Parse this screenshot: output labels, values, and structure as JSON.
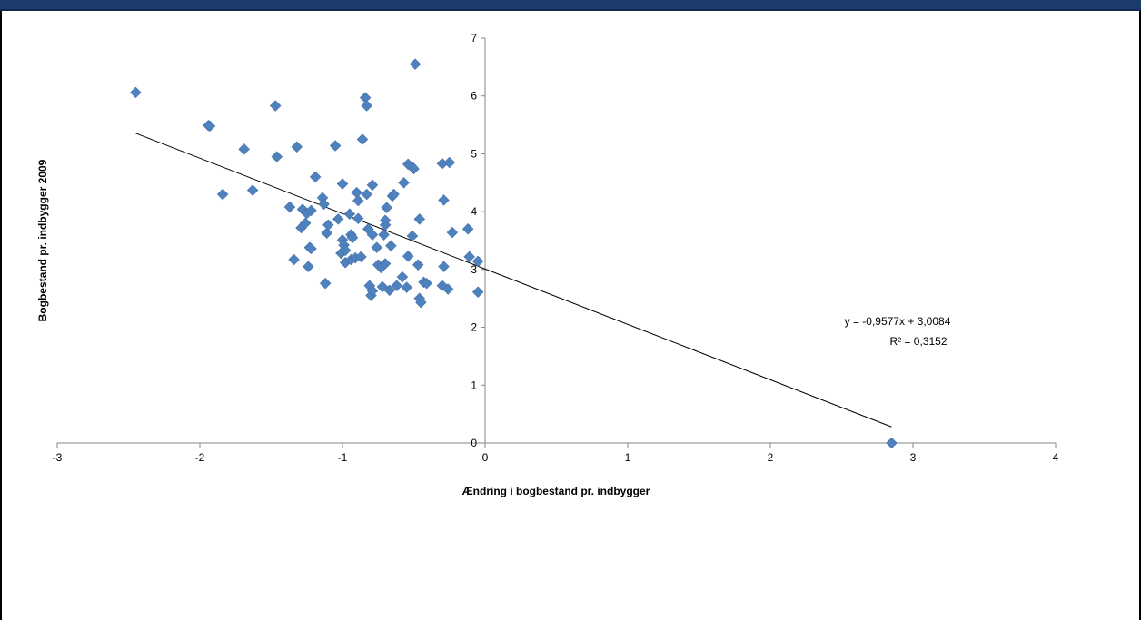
{
  "chart_data": {
    "type": "scatter",
    "title": "",
    "xlabel": "Ændring i bogbestand pr. indbygger",
    "ylabel": "Bogbestand  pr. indbygger 2009",
    "xlim": [
      -3,
      4
    ],
    "ylim": [
      0,
      7
    ],
    "x_ticks": [
      "-3",
      "-2",
      "-1",
      "0",
      "1",
      "2",
      "3",
      "4"
    ],
    "y_ticks": [
      "0",
      "1",
      "2",
      "3",
      "4",
      "5",
      "6",
      "7"
    ],
    "grid": false,
    "legend": "none",
    "marker_color": "#4f81bd",
    "trendline_color": "#000000",
    "trendline": {
      "slope": -0.9577,
      "intercept": 3.0084,
      "x_range": [
        -2.45,
        2.85
      ],
      "equation": "y = -0,9577x + 3,0084",
      "r_squared": "R² = 0,3152"
    },
    "points": [
      [
        -2.45,
        6.06
      ],
      [
        -1.94,
        5.49
      ],
      [
        -1.93,
        5.48
      ],
      [
        -1.84,
        4.3
      ],
      [
        -1.69,
        5.08
      ],
      [
        -1.63,
        4.37
      ],
      [
        -1.47,
        5.83
      ],
      [
        -1.46,
        4.95
      ],
      [
        -1.37,
        4.08
      ],
      [
        -1.34,
        3.17
      ],
      [
        -1.32,
        5.12
      ],
      [
        -1.29,
        3.72
      ],
      [
        -1.28,
        4.04
      ],
      [
        -1.26,
        3.8
      ],
      [
        -1.25,
        3.97
      ],
      [
        -1.24,
        3.05
      ],
      [
        -1.23,
        3.38
      ],
      [
        -1.22,
        3.36
      ],
      [
        -1.22,
        4.02
      ],
      [
        -1.19,
        4.6
      ],
      [
        -1.14,
        4.24
      ],
      [
        -1.13,
        4.13
      ],
      [
        -1.12,
        2.76
      ],
      [
        -1.11,
        3.63
      ],
      [
        -1.1,
        3.77
      ],
      [
        -1.05,
        5.14
      ],
      [
        -1.03,
        3.87
      ],
      [
        -1.01,
        3.28
      ],
      [
        -1.0,
        4.48
      ],
      [
        -1.0,
        3.51
      ],
      [
        -0.99,
        3.42
      ],
      [
        -0.98,
        3.33
      ],
      [
        -0.98,
        3.12
      ],
      [
        -0.95,
        3.96
      ],
      [
        -0.94,
        3.6
      ],
      [
        -0.94,
        3.17
      ],
      [
        -0.93,
        3.55
      ],
      [
        -0.91,
        3.2
      ],
      [
        -0.9,
        4.33
      ],
      [
        -0.89,
        4.19
      ],
      [
        -0.89,
        3.88
      ],
      [
        -0.87,
        3.22
      ],
      [
        -0.86,
        5.25
      ],
      [
        -0.84,
        5.97
      ],
      [
        -0.83,
        5.83
      ],
      [
        -0.83,
        4.3
      ],
      [
        -0.82,
        3.7
      ],
      [
        -0.81,
        2.72
      ],
      [
        -0.8,
        2.55
      ],
      [
        -0.79,
        2.63
      ],
      [
        -0.79,
        3.6
      ],
      [
        -0.79,
        4.46
      ],
      [
        -0.76,
        3.38
      ],
      [
        -0.75,
        3.08
      ],
      [
        -0.73,
        3.03
      ],
      [
        -0.72,
        2.7
      ],
      [
        -0.71,
        3.6
      ],
      [
        -0.7,
        3.1
      ],
      [
        -0.7,
        3.77
      ],
      [
        -0.7,
        3.85
      ],
      [
        -0.69,
        4.07
      ],
      [
        -0.67,
        2.64
      ],
      [
        -0.66,
        3.41
      ],
      [
        -0.65,
        4.27
      ],
      [
        -0.64,
        4.3
      ],
      [
        -0.62,
        2.72
      ],
      [
        -0.58,
        2.87
      ],
      [
        -0.57,
        4.5
      ],
      [
        -0.55,
        2.69
      ],
      [
        -0.54,
        3.23
      ],
      [
        -0.54,
        4.82
      ],
      [
        -0.51,
        4.77
      ],
      [
        -0.5,
        4.74
      ],
      [
        -0.51,
        3.58
      ],
      [
        -0.49,
        6.55
      ],
      [
        -0.47,
        3.08
      ],
      [
        -0.46,
        3.87
      ],
      [
        -0.46,
        2.5
      ],
      [
        -0.45,
        2.43
      ],
      [
        -0.43,
        2.78
      ],
      [
        -0.41,
        2.76
      ],
      [
        -0.3,
        4.83
      ],
      [
        -0.3,
        2.72
      ],
      [
        -0.29,
        3.05
      ],
      [
        -0.29,
        4.2
      ],
      [
        -0.26,
        2.66
      ],
      [
        -0.25,
        4.85
      ],
      [
        -0.23,
        3.64
      ],
      [
        -0.12,
        3.7
      ],
      [
        -0.11,
        3.22
      ],
      [
        -0.05,
        3.14
      ],
      [
        -0.05,
        2.61
      ],
      [
        2.85,
        0.0
      ]
    ]
  }
}
